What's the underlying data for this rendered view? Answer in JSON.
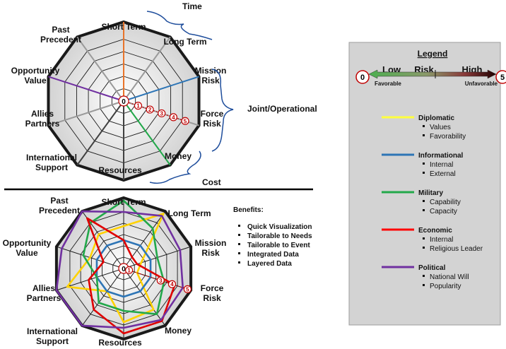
{
  "top_chart": {
    "axes": [
      "Short Term",
      "Long Term",
      "Mission Risk",
      "Force Risk",
      "Money",
      "Resources",
      "International Support",
      "Allies Partners",
      "Opportunity Value",
      "Past Precedent"
    ],
    "axis_label_lines": [
      [
        "Short Term"
      ],
      [
        "Long Term"
      ],
      [
        "Mission",
        "Risk"
      ],
      [
        "Force",
        "Risk"
      ],
      [
        "Money"
      ],
      [
        "Resources"
      ],
      [
        "International",
        "Support"
      ],
      [
        "Allies",
        "Partners"
      ],
      [
        "Opportunity",
        "Value"
      ],
      [
        "Past",
        "Precedent"
      ]
    ],
    "scale_labels": [
      "0",
      "1",
      "2",
      "3",
      "4",
      "5"
    ],
    "groups": [
      {
        "label": "Time"
      },
      {
        "label": "Joint/Operational"
      },
      {
        "label": "Cost"
      }
    ],
    "spoke_colors": [
      "#e8742a",
      "#9a9a9a",
      "#2e75b6",
      "#9a9a9a",
      "#22a84a",
      "#404040",
      "#404040",
      "#9a9a9a",
      "#7030a0",
      "#9a9a9a"
    ]
  },
  "bottom_chart": {
    "axes": [
      "Short Term",
      "Long Term",
      "Mission Risk",
      "Force Risk",
      "Money",
      "Resources",
      "International Support",
      "Allies Partners",
      "Opportunity Value",
      "Past Precedent"
    ],
    "axis_label_lines": [
      [
        "Short Term"
      ],
      [
        "Long Term"
      ],
      [
        "Mission",
        "Risk"
      ],
      [
        "Force",
        "Risk"
      ],
      [
        "Money"
      ],
      [
        "Resources"
      ],
      [
        "International",
        "Support"
      ],
      [
        "Allies",
        "Partners"
      ],
      [
        "Opportunity",
        "Value"
      ],
      [
        "Past",
        "Precedent"
      ]
    ],
    "scale_labels": [
      "0",
      "1",
      "3",
      "4",
      "5"
    ],
    "series": [
      {
        "name": "Diplomatic",
        "color": "#ffd200",
        "values": [
          3.0,
          4.8,
          1.3,
          1.0,
          3.6,
          3.8,
          2.0,
          4.2,
          2.5,
          3.0
        ]
      },
      {
        "name": "Informational",
        "color": "#2e75b6",
        "values": [
          2.0,
          2.0,
          2.0,
          2.0,
          2.0,
          2.0,
          2.0,
          2.0,
          2.0,
          2.0
        ]
      },
      {
        "name": "Military",
        "color": "#22a84a",
        "values": [
          4.8,
          3.5,
          2.5,
          3.0,
          4.0,
          3.0,
          3.0,
          2.0,
          3.0,
          4.0
        ]
      },
      {
        "name": "Economic",
        "color": "#e00000",
        "values": [
          2.0,
          1.0,
          1.0,
          3.8,
          4.6,
          4.6,
          3.6,
          2.6,
          1.5,
          4.4
        ]
      },
      {
        "name": "Political",
        "color": "#7030a0",
        "values": [
          4.0,
          4.6,
          4.2,
          4.4,
          4.5,
          4.2,
          5.0,
          5.0,
          4.6,
          5.0
        ]
      }
    ]
  },
  "benefits": {
    "title": "Benefits:",
    "items": [
      "Quick Visualization",
      "Tailorable to Needs",
      "Tailorable to Event",
      "Integrated Data",
      "Layered Data"
    ]
  },
  "legend": {
    "title": "Legend",
    "scale": {
      "low": "Low",
      "risk": "Risk",
      "high": "High",
      "min": "0",
      "max": "5",
      "favorable": "Favorable",
      "unfavorable": "Unfavorable"
    },
    "entries": [
      {
        "name": "Diplomatic",
        "color": "#ffff3c",
        "items": [
          "Values",
          "Favorability"
        ]
      },
      {
        "name": "Informational",
        "color": "#2e75b6",
        "items": [
          "Internal",
          "External"
        ]
      },
      {
        "name": "Military",
        "color": "#22a84a",
        "items": [
          "Capability",
          "Capacity"
        ]
      },
      {
        "name": "Economic",
        "color": "#ff0000",
        "items": [
          "Internal",
          "Religious Leader"
        ]
      },
      {
        "name": "Political",
        "color": "#7030a0",
        "items": [
          "National Will",
          "Popularity"
        ]
      }
    ]
  }
}
